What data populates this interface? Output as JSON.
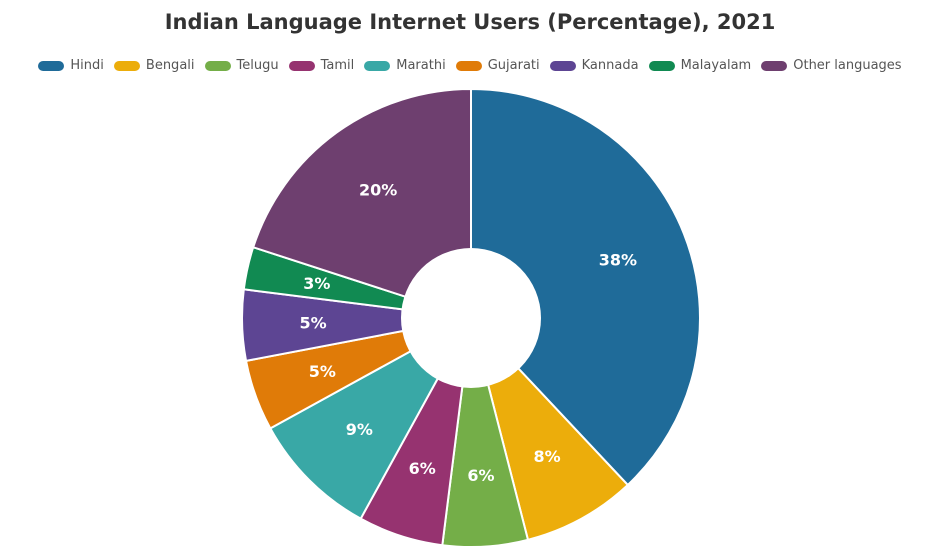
{
  "chart_data": {
    "type": "pie",
    "title": "Indian Language Internet Users (Percentage), 2021",
    "legend_position": "top",
    "categories": [
      "Hindi",
      "Bengali",
      "Telugu",
      "Tamil",
      "Marathi",
      "Gujarati",
      "Kannada",
      "Malayalam",
      "Other languages"
    ],
    "values": [
      38,
      8,
      6,
      6,
      9,
      5,
      5,
      3,
      20
    ],
    "labels": [
      "38%",
      "8%",
      "6%",
      "6%",
      "9%",
      "5%",
      "5%",
      "3%",
      "20%"
    ],
    "colors": [
      "#1f6b99",
      "#ecad0b",
      "#74ae48",
      "#963370",
      "#39a8a6",
      "#e07b08",
      "#5d4593",
      "#118a52",
      "#6e3f6f"
    ],
    "unit": "%"
  }
}
